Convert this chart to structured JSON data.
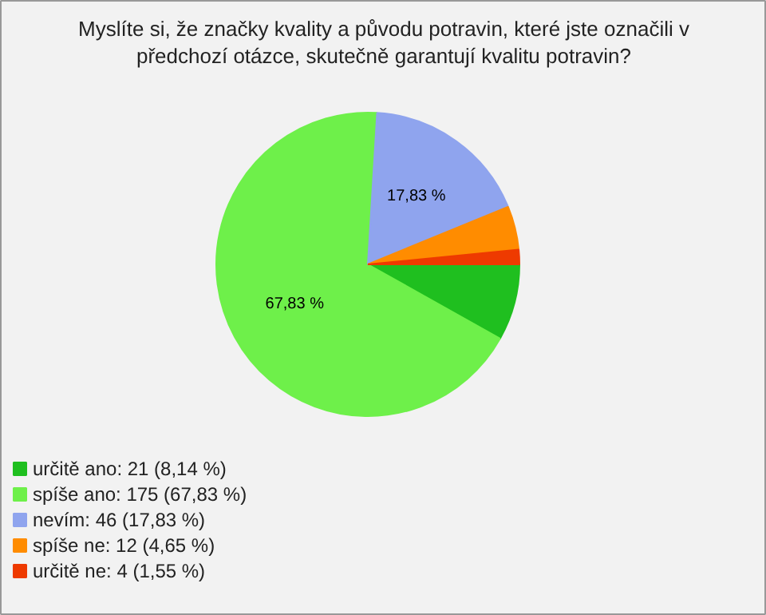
{
  "chart_data": {
    "type": "pie",
    "title": "Myslíte si, že značky kvality a původu potravin, které jste označili v\npředchozí otázce, skutečně garantují kvalitu potravin?",
    "categories": [
      "určitě ano: 21 (8,14 %)",
      "spíše ano: 175 (67,83 %)",
      "nevím: 46 (17,83 %)",
      "spíše ne: 12 (4,65 %)",
      "určitě ne: 4 (1,55 %)"
    ],
    "values": [
      8.14,
      67.83,
      17.83,
      4.65,
      1.55
    ],
    "colors": [
      "#1fbf1f",
      "#6ef04a",
      "#8fa4ee",
      "#ff8c00",
      "#ee3a00"
    ],
    "value_labels": [
      null,
      "67,83 %",
      "17,83 %",
      null,
      null
    ],
    "legend": "bottom left"
  }
}
